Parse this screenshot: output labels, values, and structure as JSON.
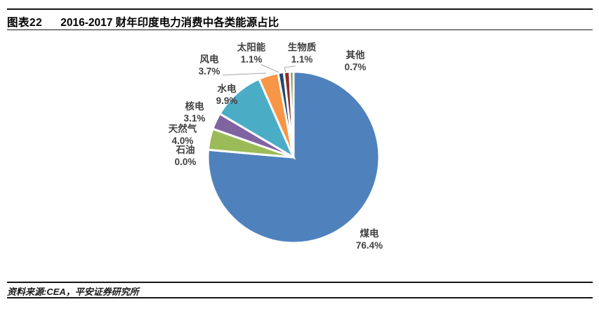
{
  "figure": {
    "tag": "图表22",
    "title": "2016-2017 财年印度电力消费中各类能源占比"
  },
  "source": "资料来源:CEA，平安证券研究所",
  "chart_data": {
    "type": "pie",
    "title": "2016-2017 财年印度电力消费中各类能源占比",
    "unit": "%",
    "start_angle_deg": 0,
    "direction": "clockwise",
    "legend": "none",
    "labels_outside": true,
    "slice_border_color": "#ffffff",
    "label_text_color": "#404040",
    "slices": [
      {
        "label": "煤电",
        "value": 76.4,
        "color": "#4F81BD"
      },
      {
        "label": "石油",
        "value": 0.0,
        "color": "#C0504D"
      },
      {
        "label": "天然气",
        "value": 4.0,
        "color": "#9BBB59"
      },
      {
        "label": "核电",
        "value": 3.1,
        "color": "#8064A2"
      },
      {
        "label": "水电",
        "value": 9.9,
        "color": "#4BACC6"
      },
      {
        "label": "风电",
        "value": 3.7,
        "color": "#F79646"
      },
      {
        "label": "太阳能",
        "value": 1.1,
        "color": "#24456E"
      },
      {
        "label": "生物质",
        "value": 1.1,
        "color": "#8C2E2B"
      },
      {
        "label": "其他",
        "value": 0.7,
        "color": "#77933C"
      }
    ]
  }
}
